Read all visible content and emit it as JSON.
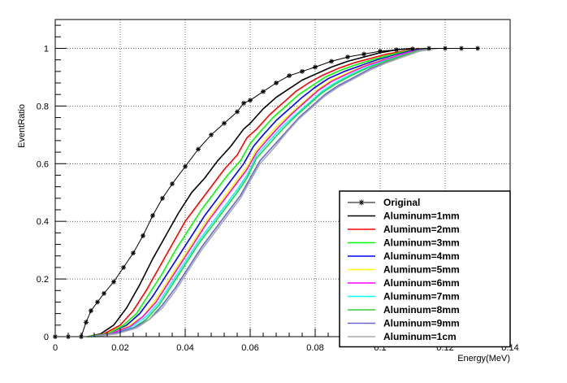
{
  "chart_data": {
    "type": "line",
    "title": "",
    "xlabel": "Energy(MeV)",
    "ylabel": "EventRatio",
    "xlim": [
      0,
      0.14
    ],
    "ylim": [
      0,
      1.1
    ],
    "x_ticks": [
      "0",
      "0.02",
      "0.04",
      "0.06",
      "0.08",
      "0.1",
      "0.12",
      "0.14"
    ],
    "y_ticks": [
      "0",
      "0.2",
      "0.4",
      "0.6",
      "0.8",
      "1"
    ],
    "grid": true,
    "legend_position": "bottom-right",
    "series": [
      {
        "name": "Original",
        "color": "#000000",
        "marker": "star",
        "x": [
          0.0,
          0.004,
          0.008,
          0.0095,
          0.011,
          0.013,
          0.015,
          0.018,
          0.021,
          0.024,
          0.027,
          0.03,
          0.033,
          0.036,
          0.04,
          0.044,
          0.048,
          0.052,
          0.056,
          0.058,
          0.06,
          0.064,
          0.068,
          0.072,
          0.076,
          0.08,
          0.085,
          0.09,
          0.095,
          0.1,
          0.105,
          0.11,
          0.115,
          0.12,
          0.125,
          0.13
        ],
        "y": [
          0.0,
          0.0,
          0.0,
          0.05,
          0.09,
          0.12,
          0.15,
          0.19,
          0.24,
          0.29,
          0.35,
          0.42,
          0.48,
          0.53,
          0.59,
          0.65,
          0.7,
          0.74,
          0.78,
          0.81,
          0.82,
          0.85,
          0.88,
          0.905,
          0.92,
          0.935,
          0.955,
          0.97,
          0.98,
          0.99,
          0.995,
          0.998,
          1.0,
          1.0,
          1.0,
          1.0
        ]
      },
      {
        "name": "Aluminum=1mm",
        "color": "#000000",
        "x": [
          0.01,
          0.014,
          0.018,
          0.022,
          0.026,
          0.03,
          0.034,
          0.038,
          0.042,
          0.046,
          0.05,
          0.054,
          0.058,
          0.06,
          0.064,
          0.068,
          0.072,
          0.076,
          0.08,
          0.085,
          0.09,
          0.095,
          0.1,
          0.105,
          0.11
        ],
        "y": [
          0.0,
          0.01,
          0.04,
          0.1,
          0.18,
          0.27,
          0.35,
          0.43,
          0.5,
          0.55,
          0.61,
          0.66,
          0.72,
          0.74,
          0.79,
          0.83,
          0.86,
          0.89,
          0.91,
          0.935,
          0.955,
          0.97,
          0.985,
          0.995,
          1.0
        ]
      },
      {
        "name": "Aluminum=2mm",
        "color": "#ff0000",
        "x": [
          0.01,
          0.015,
          0.02,
          0.024,
          0.028,
          0.032,
          0.036,
          0.04,
          0.044,
          0.048,
          0.052,
          0.056,
          0.059,
          0.062,
          0.066,
          0.07,
          0.074,
          0.078,
          0.082,
          0.087,
          0.092,
          0.097,
          0.102,
          0.107,
          0.112
        ],
        "y": [
          0.0,
          0.01,
          0.04,
          0.09,
          0.16,
          0.24,
          0.32,
          0.4,
          0.46,
          0.52,
          0.58,
          0.63,
          0.69,
          0.72,
          0.77,
          0.81,
          0.85,
          0.88,
          0.905,
          0.93,
          0.95,
          0.965,
          0.98,
          0.99,
          1.0
        ]
      },
      {
        "name": "Aluminum=3mm",
        "color": "#00ff00",
        "x": [
          0.01,
          0.016,
          0.021,
          0.025,
          0.029,
          0.033,
          0.037,
          0.041,
          0.045,
          0.049,
          0.053,
          0.057,
          0.06,
          0.063,
          0.067,
          0.071,
          0.075,
          0.079,
          0.083,
          0.088,
          0.093,
          0.098,
          0.103,
          0.108,
          0.113
        ],
        "y": [
          0.0,
          0.01,
          0.04,
          0.08,
          0.15,
          0.22,
          0.3,
          0.37,
          0.44,
          0.5,
          0.56,
          0.61,
          0.67,
          0.71,
          0.76,
          0.8,
          0.84,
          0.87,
          0.9,
          0.925,
          0.945,
          0.962,
          0.978,
          0.99,
          1.0
        ]
      },
      {
        "name": "Aluminum=4mm",
        "color": "#0000ff",
        "x": [
          0.011,
          0.017,
          0.022,
          0.026,
          0.03,
          0.034,
          0.038,
          0.042,
          0.046,
          0.05,
          0.054,
          0.058,
          0.061,
          0.064,
          0.068,
          0.072,
          0.076,
          0.08,
          0.084,
          0.089,
          0.094,
          0.099,
          0.104,
          0.109,
          0.114
        ],
        "y": [
          0.0,
          0.01,
          0.04,
          0.08,
          0.14,
          0.21,
          0.28,
          0.35,
          0.42,
          0.48,
          0.54,
          0.6,
          0.66,
          0.7,
          0.75,
          0.79,
          0.83,
          0.865,
          0.895,
          0.92,
          0.94,
          0.96,
          0.975,
          0.99,
          1.0
        ]
      },
      {
        "name": "Aluminum=5mm",
        "color": "#ffff00",
        "x": [
          0.011,
          0.017,
          0.022,
          0.027,
          0.031,
          0.035,
          0.039,
          0.043,
          0.047,
          0.051,
          0.055,
          0.059,
          0.062,
          0.065,
          0.069,
          0.073,
          0.077,
          0.081,
          0.085,
          0.09,
          0.095,
          0.1,
          0.105,
          0.11,
          0.115
        ],
        "y": [
          0.0,
          0.01,
          0.035,
          0.07,
          0.13,
          0.2,
          0.27,
          0.34,
          0.41,
          0.47,
          0.53,
          0.59,
          0.65,
          0.69,
          0.74,
          0.78,
          0.82,
          0.86,
          0.89,
          0.915,
          0.94,
          0.958,
          0.975,
          0.99,
          1.0
        ]
      },
      {
        "name": "Aluminum=6mm",
        "color": "#ff00ff",
        "x": [
          0.011,
          0.017,
          0.023,
          0.027,
          0.031,
          0.035,
          0.039,
          0.043,
          0.047,
          0.051,
          0.055,
          0.059,
          0.062,
          0.065,
          0.069,
          0.073,
          0.077,
          0.081,
          0.085,
          0.09,
          0.095,
          0.1,
          0.105,
          0.11,
          0.115
        ],
        "y": [
          0.0,
          0.01,
          0.035,
          0.07,
          0.12,
          0.19,
          0.26,
          0.33,
          0.4,
          0.46,
          0.52,
          0.58,
          0.64,
          0.68,
          0.73,
          0.775,
          0.815,
          0.855,
          0.885,
          0.912,
          0.937,
          0.956,
          0.974,
          0.99,
          1.0
        ]
      },
      {
        "name": "Aluminum=7mm",
        "color": "#00ffff",
        "x": [
          0.011,
          0.018,
          0.023,
          0.028,
          0.032,
          0.036,
          0.04,
          0.044,
          0.048,
          0.052,
          0.056,
          0.059,
          0.062,
          0.066,
          0.07,
          0.074,
          0.078,
          0.082,
          0.086,
          0.091,
          0.096,
          0.101,
          0.106,
          0.111,
          0.116
        ],
        "y": [
          0.0,
          0.01,
          0.03,
          0.07,
          0.12,
          0.19,
          0.26,
          0.33,
          0.39,
          0.45,
          0.51,
          0.56,
          0.63,
          0.68,
          0.73,
          0.77,
          0.81,
          0.85,
          0.88,
          0.91,
          0.935,
          0.955,
          0.973,
          0.99,
          1.0
        ]
      },
      {
        "name": "Aluminum=8mm",
        "color": "#33cc33",
        "x": [
          0.012,
          0.018,
          0.024,
          0.028,
          0.032,
          0.036,
          0.04,
          0.044,
          0.048,
          0.052,
          0.056,
          0.059,
          0.062,
          0.066,
          0.07,
          0.074,
          0.078,
          0.082,
          0.086,
          0.091,
          0.096,
          0.101,
          0.106,
          0.111,
          0.116
        ],
        "y": [
          0.0,
          0.01,
          0.03,
          0.06,
          0.11,
          0.18,
          0.25,
          0.32,
          0.38,
          0.44,
          0.5,
          0.55,
          0.62,
          0.67,
          0.72,
          0.765,
          0.805,
          0.845,
          0.875,
          0.905,
          0.932,
          0.953,
          0.972,
          0.99,
          1.0
        ]
      },
      {
        "name": "Aluminum=9mm",
        "color": "#6666cc",
        "x": [
          0.012,
          0.018,
          0.024,
          0.029,
          0.033,
          0.037,
          0.041,
          0.045,
          0.049,
          0.053,
          0.057,
          0.06,
          0.063,
          0.067,
          0.071,
          0.075,
          0.079,
          0.083,
          0.087,
          0.092,
          0.097,
          0.102,
          0.107,
          0.112,
          0.117
        ],
        "y": [
          0.0,
          0.01,
          0.03,
          0.06,
          0.11,
          0.17,
          0.24,
          0.31,
          0.37,
          0.43,
          0.49,
          0.55,
          0.61,
          0.66,
          0.71,
          0.76,
          0.8,
          0.84,
          0.87,
          0.9,
          0.93,
          0.952,
          0.971,
          0.99,
          1.0
        ]
      },
      {
        "name": "Aluminum=1cm",
        "color": "#aaaaaa",
        "x": [
          0.012,
          0.019,
          0.025,
          0.029,
          0.033,
          0.037,
          0.041,
          0.045,
          0.049,
          0.053,
          0.057,
          0.06,
          0.063,
          0.067,
          0.071,
          0.075,
          0.079,
          0.083,
          0.087,
          0.092,
          0.097,
          0.102,
          0.107,
          0.112,
          0.118
        ],
        "y": [
          0.0,
          0.01,
          0.03,
          0.06,
          0.1,
          0.16,
          0.23,
          0.3,
          0.36,
          0.42,
          0.48,
          0.54,
          0.6,
          0.65,
          0.705,
          0.755,
          0.795,
          0.835,
          0.865,
          0.895,
          0.925,
          0.95,
          0.97,
          0.99,
          1.0
        ]
      }
    ]
  }
}
